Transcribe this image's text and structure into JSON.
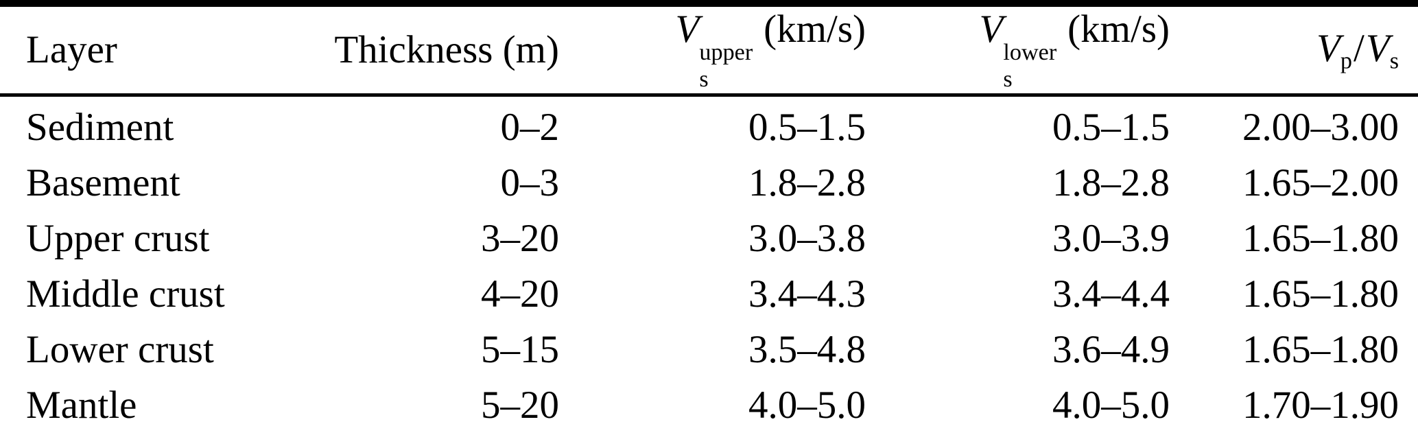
{
  "colors": {
    "background": "#ffffff",
    "text": "#000000",
    "rule": "#000000"
  },
  "table": {
    "headers": {
      "layer": "Layer",
      "thickness": "Thickness (m)",
      "vs_upper": {
        "symbol": "V",
        "sub": "s",
        "sup": "upper",
        "unit": "(km/s)"
      },
      "vs_lower": {
        "symbol": "V",
        "sub": "s",
        "sup": "lower",
        "unit": "(km/s)"
      },
      "vp_vs": {
        "sym1": "V",
        "sub1": "p",
        "slash": "/",
        "sym2": "V",
        "sub2": "s"
      }
    },
    "rows": [
      {
        "layer": "Sediment",
        "thickness": "0–2",
        "vs_upper": "0.5–1.5",
        "vs_lower": "0.5–1.5",
        "vp_vs": "2.00–3.00"
      },
      {
        "layer": "Basement",
        "thickness": "0–3",
        "vs_upper": "1.8–2.8",
        "vs_lower": "1.8–2.8",
        "vp_vs": "1.65–2.00"
      },
      {
        "layer": "Upper crust",
        "thickness": "3–20",
        "vs_upper": "3.0–3.8",
        "vs_lower": "3.0–3.9",
        "vp_vs": "1.65–1.80"
      },
      {
        "layer": "Middle crust",
        "thickness": "4–20",
        "vs_upper": "3.4–4.3",
        "vs_lower": "3.4–4.4",
        "vp_vs": "1.65–1.80"
      },
      {
        "layer": "Lower crust",
        "thickness": "5–15",
        "vs_upper": "3.5–4.8",
        "vs_lower": "3.6–4.9",
        "vp_vs": "1.65–1.80"
      },
      {
        "layer": "Mantle",
        "thickness": "5–20",
        "vs_upper": "4.0–5.0",
        "vs_lower": "4.0–5.0",
        "vp_vs": "1.70–1.90"
      }
    ]
  }
}
